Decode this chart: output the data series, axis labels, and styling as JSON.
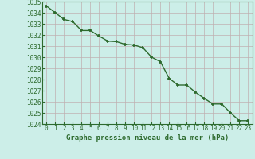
{
  "x": [
    0,
    1,
    2,
    3,
    4,
    5,
    6,
    7,
    8,
    9,
    10,
    11,
    12,
    13,
    14,
    15,
    16,
    17,
    18,
    19,
    20,
    21,
    22,
    23
  ],
  "y": [
    1034.6,
    1034.0,
    1033.4,
    1033.2,
    1032.4,
    1032.4,
    1031.9,
    1031.45,
    1031.4,
    1031.15,
    1031.1,
    1030.85,
    1030.0,
    1029.6,
    1028.1,
    1027.5,
    1027.5,
    1026.85,
    1026.3,
    1025.8,
    1025.8,
    1025.0,
    1024.3,
    1024.3
  ],
  "ylim": [
    1024,
    1035
  ],
  "xlim_min": -0.5,
  "xlim_max": 23.5,
  "yticks": [
    1024,
    1025,
    1026,
    1027,
    1028,
    1029,
    1030,
    1031,
    1032,
    1033,
    1034,
    1035
  ],
  "xticks": [
    0,
    1,
    2,
    3,
    4,
    5,
    6,
    7,
    8,
    9,
    10,
    11,
    12,
    13,
    14,
    15,
    16,
    17,
    18,
    19,
    20,
    21,
    22,
    23
  ],
  "xlabel": "Graphe pression niveau de la mer (hPa)",
  "line_color": "#2d6a2d",
  "marker": "+",
  "marker_color": "#2d6a2d",
  "bg_color": "#cceee8",
  "grid_color": "#c0b0b0",
  "xlabel_color": "#2d6a2d",
  "tick_label_color": "#2d6a2d",
  "xlabel_fontsize": 6.5,
  "tick_fontsize": 5.5,
  "linewidth": 1.0,
  "markersize": 3.5,
  "spine_color": "#2d6a2d"
}
